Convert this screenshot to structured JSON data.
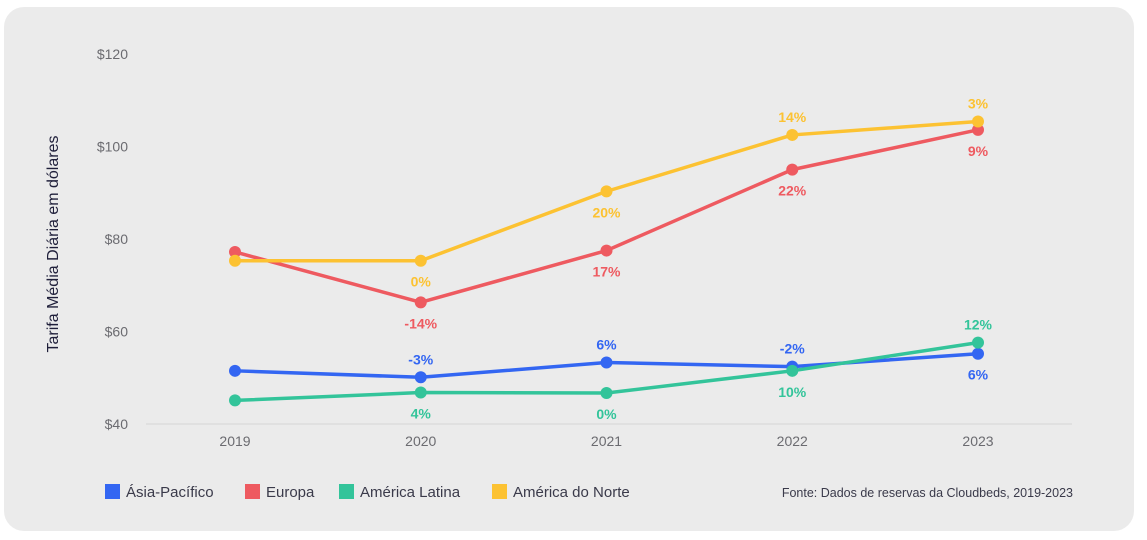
{
  "chart_data": {
    "type": "line",
    "ylabel": "Tarifa Média Diária em dólares",
    "categories": [
      "2019",
      "2020",
      "2021",
      "2022",
      "2023"
    ],
    "ylim": [
      40,
      120
    ],
    "yticks": [
      40,
      60,
      80,
      100,
      120
    ],
    "ytick_labels": [
      "$40",
      "$60",
      "$80",
      "$100",
      "$120"
    ],
    "grid": "horizontal baseline only",
    "legend_position": "bottom-left",
    "series": [
      {
        "name": "Ásia-Pacífico",
        "color": "#3366f2",
        "values": [
          51.5,
          50.1,
          53.3,
          52.4,
          55.2
        ],
        "labels": [
          "",
          "-3%",
          "6%",
          "-2%",
          "6%"
        ],
        "label_pos": [
          "",
          "above",
          "above",
          "above",
          "below"
        ]
      },
      {
        "name": "Europa",
        "color": "#ee5a60",
        "values": [
          77.2,
          66.3,
          77.5,
          95.0,
          103.6
        ],
        "labels": [
          "",
          "-14%",
          "17%",
          "22%",
          "9%"
        ],
        "label_pos": [
          "",
          "below",
          "below",
          "below",
          "below"
        ]
      },
      {
        "name": "América Latina",
        "color": "#33c49a",
        "values": [
          45.1,
          46.8,
          46.7,
          51.5,
          57.6
        ],
        "labels": [
          "",
          "4%",
          "0%",
          "10%",
          "12%"
        ],
        "label_pos": [
          "",
          "below",
          "below",
          "below",
          "above"
        ]
      },
      {
        "name": "América do Norte",
        "color": "#fcc232",
        "values": [
          75.3,
          75.3,
          90.3,
          102.5,
          105.4
        ],
        "labels": [
          "",
          "0%",
          "20%",
          "14%",
          "3%"
        ],
        "label_pos": [
          "",
          "below",
          "below",
          "above",
          "above"
        ]
      }
    ],
    "source": "Fonte: Dados de reservas da Cloudbeds, 2019-2023"
  }
}
